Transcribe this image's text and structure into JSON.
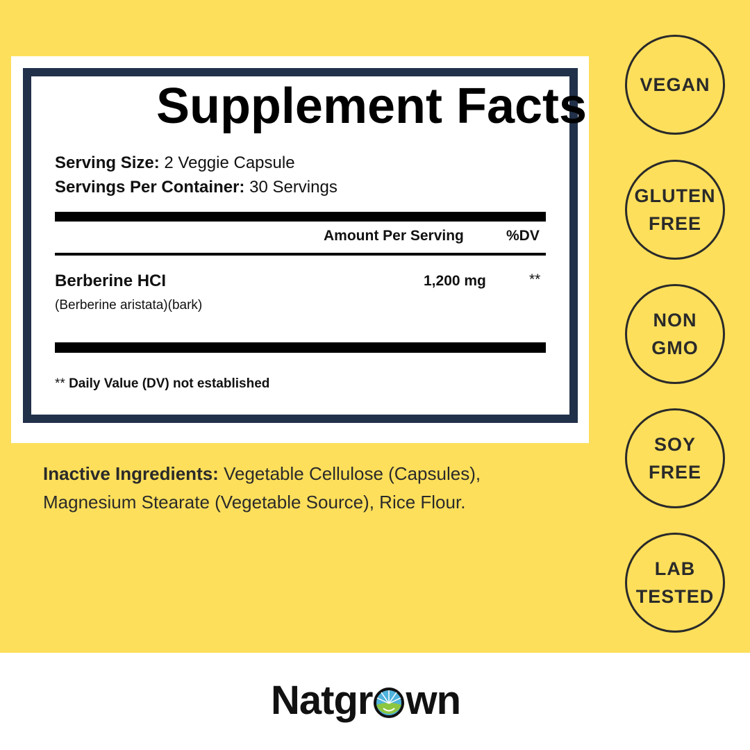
{
  "label": {
    "title": "Supplement Facts",
    "serving_size_label": "Serving Size:",
    "serving_size_value": "2 Veggie Capsule",
    "servings_label": "Servings Per Container:",
    "servings_value": "30 Servings",
    "col_amount": "Amount Per Serving",
    "col_dv": "%DV",
    "ingredient": {
      "name": "Berberine HCI",
      "source": "(Berberine aristata)(bark)",
      "amount": "1,200 mg",
      "dv": "**"
    },
    "footnote_mark": "**",
    "footnote": "Daily Value (DV) not established"
  },
  "inactive": {
    "label": "Inactive Ingredients:",
    "text": "Vegetable Cellulose (Capsules), Magnesium Stearate (Vegetable Source), Rice Flour."
  },
  "badges": [
    {
      "l1": "VEGAN",
      "l2": ""
    },
    {
      "l1": "GLUTEN",
      "l2": "FREE"
    },
    {
      "l1": "NON",
      "l2": "GMO"
    },
    {
      "l1": "SOY",
      "l2": "FREE"
    },
    {
      "l1": "LAB",
      "l2": "TESTED"
    }
  ],
  "brand": {
    "pre": "Natgr",
    "post": "wn"
  },
  "colors": {
    "background": "#fddf5b",
    "frame": "#22314a",
    "text": "#2a2a2a"
  }
}
